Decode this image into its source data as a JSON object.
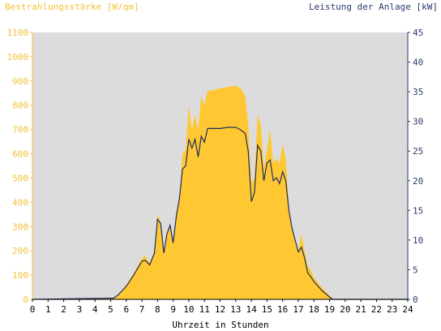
{
  "chart_data": {
    "type": "area",
    "title_left": "Bestrahlungsstärke [W/qm]",
    "title_right": "Leistung der Anlage [kW]",
    "xlabel": "Uhrzeit in Stunden",
    "x_range": [
      0,
      24
    ],
    "x_ticks": [
      "0",
      "1",
      "2",
      "3",
      "4",
      "5",
      "6",
      "7",
      "8",
      "9",
      "10",
      "11",
      "12",
      "13",
      "14",
      "15",
      "16",
      "17",
      "18",
      "19",
      "20",
      "21",
      "22",
      "23",
      "24"
    ],
    "y_left_range": [
      0,
      1100
    ],
    "y_left_ticks": [
      "0",
      "100",
      "200",
      "300",
      "400",
      "500",
      "600",
      "700",
      "800",
      "900",
      "1000",
      "1100"
    ],
    "y_right_range": [
      0,
      45
    ],
    "y_right_ticks": [
      "0",
      "5",
      "10",
      "15",
      "20",
      "25",
      "30",
      "35",
      "40",
      "45"
    ],
    "legend": "none",
    "grid": false,
    "colors": {
      "irradiance": "#ffc832",
      "power": "#1f2d5c",
      "plot_bg": "#dcdcdc",
      "left_axis": "#f2c23a",
      "right_axis": "#2b3a6b"
    },
    "series": [
      {
        "axis": "left",
        "x": [
          0,
          5.2,
          5.5,
          6,
          6.5,
          7,
          7.2,
          7.5,
          7.8,
          8,
          8.2,
          8.4,
          8.6,
          8.8,
          9,
          9.2,
          9.4,
          9.6,
          9.8,
          10,
          10.2,
          10.4,
          10.6,
          10.8,
          11,
          11.2,
          11.5,
          12,
          12.5,
          13,
          13.3,
          13.6,
          13.8,
          14,
          14.2,
          14.4,
          14.6,
          14.8,
          15,
          15.2,
          15.4,
          15.6,
          15.8,
          16,
          16.2,
          16.4,
          16.6,
          16.8,
          17,
          17.2,
          17.4,
          17.6,
          17.8,
          18,
          18.5,
          19,
          19.2,
          24
        ],
        "y": [
          0,
          5,
          20,
          60,
          110,
          170,
          180,
          150,
          200,
          350,
          320,
          200,
          280,
          300,
          240,
          360,
          420,
          600,
          620,
          800,
          700,
          760,
          700,
          840,
          800,
          860,
          860,
          870,
          875,
          880,
          870,
          840,
          720,
          480,
          500,
          760,
          720,
          540,
          620,
          700,
          560,
          580,
          560,
          640,
          580,
          380,
          300,
          250,
          200,
          270,
          200,
          140,
          120,
          90,
          50,
          15,
          0,
          0
        ]
      },
      {
        "axis": "right",
        "x": [
          0,
          5.2,
          5.5,
          6,
          6.5,
          7,
          7.2,
          7.5,
          7.8,
          8,
          8.2,
          8.4,
          8.6,
          8.8,
          9,
          9.2,
          9.4,
          9.6,
          9.8,
          10,
          10.2,
          10.4,
          10.6,
          10.8,
          11,
          11.2,
          11.5,
          12,
          12.5,
          13,
          13.3,
          13.6,
          13.8,
          14,
          14.2,
          14.4,
          14.6,
          14.8,
          15,
          15.2,
          15.4,
          15.6,
          15.8,
          16,
          16.2,
          16.4,
          16.6,
          16.8,
          17,
          17.2,
          17.4,
          17.6,
          17.8,
          18,
          18.5,
          19,
          19.2,
          24
        ],
        "y": [
          0,
          0.2,
          0.8,
          2.2,
          4.2,
          6.4,
          6.6,
          5.8,
          7.8,
          13.5,
          12.8,
          7.8,
          11,
          12.5,
          9.5,
          14,
          17,
          22,
          22.5,
          27,
          25.5,
          27,
          24,
          27.5,
          26.5,
          28.8,
          28.8,
          28.8,
          29,
          29,
          28.6,
          28,
          25,
          16.5,
          18,
          26,
          25,
          20,
          23,
          23.5,
          20,
          20.5,
          19.5,
          21.5,
          20,
          15,
          12,
          10,
          8,
          8.8,
          7,
          4.5,
          3.8,
          3,
          1.5,
          0.4,
          0,
          0
        ]
      }
    ]
  }
}
